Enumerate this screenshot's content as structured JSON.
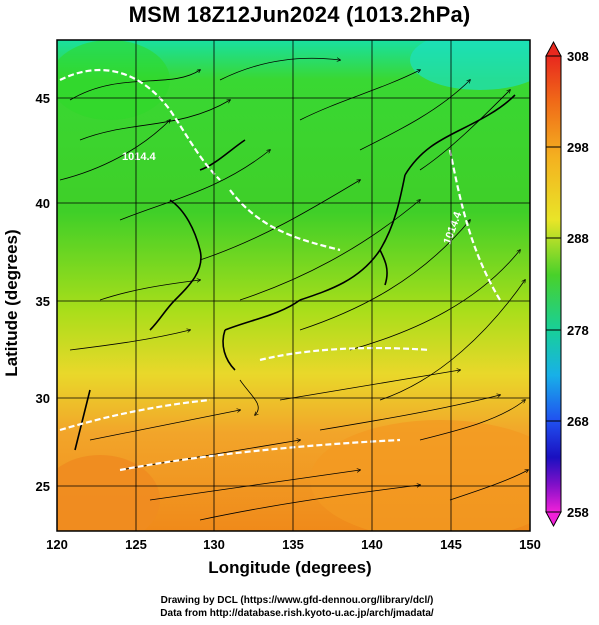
{
  "title": "MSM 18Z12Jun2024 (1013.2hPa)",
  "xaxis": {
    "label": "Longitude (degrees)",
    "min": 120,
    "max": 150,
    "ticks": [
      "120",
      "125",
      "130",
      "135",
      "140",
      "145",
      "150"
    ]
  },
  "yaxis": {
    "label": "Latitude  (degrees)",
    "min": 22.4,
    "max": 47.6,
    "ticks": [
      "25",
      "30",
      "35",
      "40",
      "45"
    ]
  },
  "colorbar": {
    "min": 258,
    "max": 308,
    "ticks": [
      "258",
      "268",
      "278",
      "288",
      "298",
      "308"
    ]
  },
  "contour_labels": [
    "1014.4",
    "1014.4"
  ],
  "credits": {
    "line1": "Drawing by DCL (https://www.gfd-dennou.org/library/dcl/)",
    "line2": "Data from http://database.rish.kyoto-u.ac.jp/arch/jmadata/"
  },
  "colors": {
    "cold": "#00e0e0",
    "mid": "#33cc1a",
    "warm": "#f0a020",
    "hot": "#ff7a10"
  }
}
